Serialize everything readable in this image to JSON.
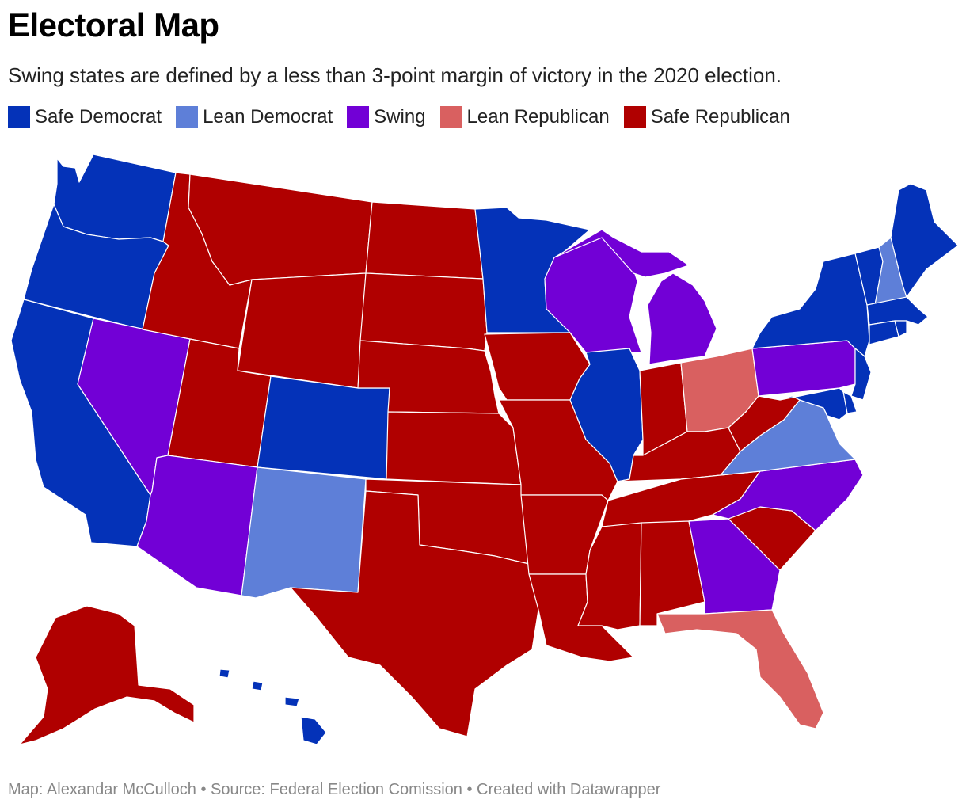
{
  "header": {
    "title": "Electoral Map",
    "subtitle": "Swing states are defined by a less than 3-point margin of victory in the 2020 election."
  },
  "legend": [
    {
      "label": "Safe Democrat",
      "color": "#0432b8",
      "key": "safe_dem"
    },
    {
      "label": "Lean Democrat",
      "color": "#5e7fd8",
      "key": "lean_dem"
    },
    {
      "label": "Swing",
      "color": "#7200d6",
      "key": "swing"
    },
    {
      "label": "Lean Republican",
      "color": "#d96060",
      "key": "lean_rep"
    },
    {
      "label": "Safe Republican",
      "color": "#b00000",
      "key": "safe_rep"
    }
  ],
  "states": {
    "WA": "safe_dem",
    "OR": "safe_dem",
    "CA": "safe_dem",
    "CO": "safe_dem",
    "MN": "safe_dem",
    "IL": "safe_dem",
    "NY": "safe_dem",
    "VT": "safe_dem",
    "ME": "safe_dem",
    "MA": "safe_dem",
    "CT": "safe_dem",
    "RI": "safe_dem",
    "NJ": "safe_dem",
    "DE": "safe_dem",
    "MD": "safe_dem",
    "HI": "safe_dem",
    "NM": "lean_dem",
    "VA": "lean_dem",
    "NH": "lean_dem",
    "NV": "swing",
    "AZ": "swing",
    "WI": "swing",
    "MI": "swing",
    "PA": "swing",
    "NC": "swing",
    "GA": "swing",
    "OH": "lean_rep",
    "FL": "lean_rep",
    "ID": "safe_rep",
    "MT": "safe_rep",
    "WY": "safe_rep",
    "UT": "safe_rep",
    "ND": "safe_rep",
    "SD": "safe_rep",
    "NE": "safe_rep",
    "KS": "safe_rep",
    "OK": "safe_rep",
    "TX": "safe_rep",
    "IA": "safe_rep",
    "MO": "safe_rep",
    "AR": "safe_rep",
    "LA": "safe_rep",
    "MS": "safe_rep",
    "AL": "safe_rep",
    "TN": "safe_rep",
    "KY": "safe_rep",
    "IN": "safe_rep",
    "WV": "safe_rep",
    "SC": "safe_rep",
    "AK": "safe_rep"
  },
  "footer": {
    "credit": "Map: Alexandar McCulloch • Source: Federal Election Comission • Created with Datawrapper"
  }
}
